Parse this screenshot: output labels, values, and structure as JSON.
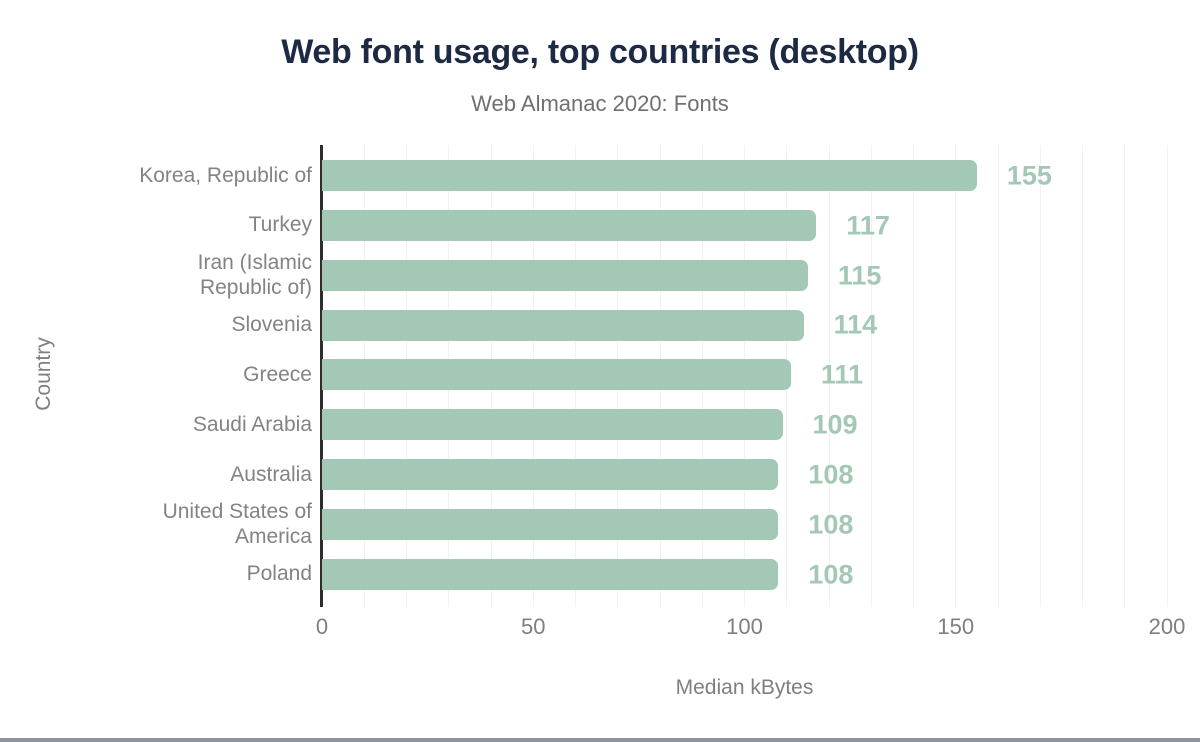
{
  "chart_data": {
    "type": "bar",
    "orientation": "horizontal",
    "title": "Web font usage, top countries (desktop)",
    "subtitle": "Web Almanac 2020: Fonts",
    "xlabel": "Median kBytes",
    "ylabel": "Country",
    "categories": [
      "Korea, Republic of",
      "Turkey",
      "Iran (Islamic\nRepublic of)",
      "Slovenia",
      "Greece",
      "Saudi Arabia",
      "Australia",
      "United States of\nAmerica",
      "Poland"
    ],
    "values": [
      155,
      117,
      115,
      114,
      111,
      109,
      108,
      108,
      108
    ],
    "value_labels": [
      "155",
      "117",
      "115",
      "114",
      "111",
      "109",
      "108",
      "108",
      "108"
    ],
    "xlim": [
      0,
      200
    ],
    "xticks": [
      "0",
      "50",
      "100",
      "150",
      "200"
    ],
    "xtick_values": [
      0,
      50,
      100,
      150,
      200
    ],
    "grid": {
      "axis": "x",
      "interval": 10,
      "visible": true
    },
    "legend": "none",
    "colors": {
      "bar": "#a4c8b6",
      "value_label": "#a4c8b6",
      "title": "#1d2a44",
      "subtitle": "#6f7070",
      "axis_text": "#7f7f7f",
      "category_text": "#838383",
      "axis_line": "#2d2d2d",
      "gridline": "#f1f2f1",
      "background": "#ffffff",
      "bottom_edge": "#8e949b"
    }
  }
}
